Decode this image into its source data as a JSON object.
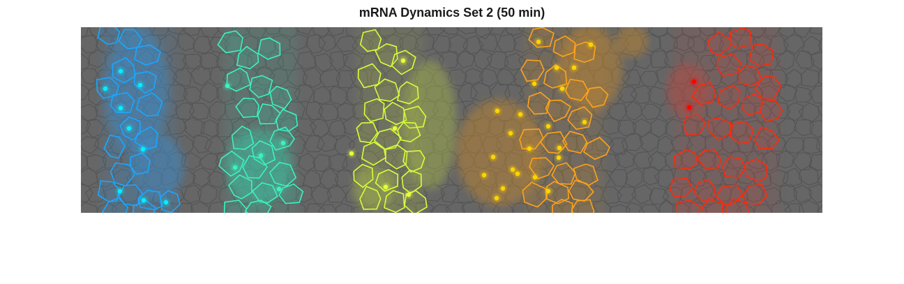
{
  "figure": {
    "title": "mRNA Dynamics Set 2 (50 min)",
    "background_color": "#ffffff"
  },
  "panel": {
    "tissue_color": "#666666",
    "cell_edge_color": "#555555"
  },
  "stripes": [
    {
      "name": "stripe-1",
      "color": "#1aa7ff",
      "dot_color": "#00f0ff",
      "glow": "#3a8fd0"
    },
    {
      "name": "stripe-2",
      "color": "#3cf2c0",
      "dot_color": "#3cf2c0",
      "glow": "#3ac9a6"
    },
    {
      "name": "stripe-3",
      "color": "#d8ff3a",
      "dot_color": "#e9ff3a",
      "glow": "#a8b84a"
    },
    {
      "name": "stripe-4",
      "color": "#ffa31a",
      "dot_color": "#ffd400",
      "glow": "#c8892a"
    },
    {
      "name": "stripe-5",
      "color": "#ff2a0a",
      "dot_color": "#ff0000",
      "glow": "#c04a40"
    }
  ]
}
